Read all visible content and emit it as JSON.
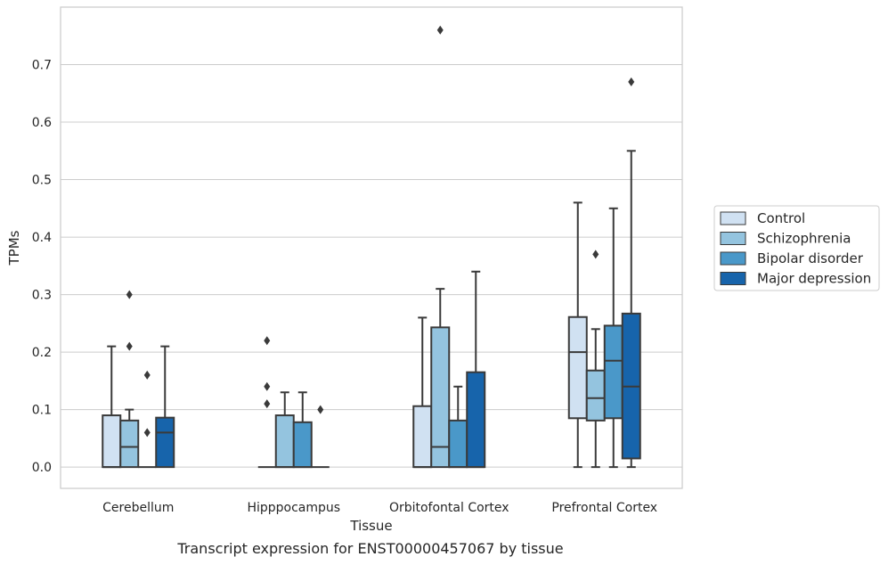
{
  "caption": "Transcript expression for ENST00000457067 by tissue",
  "colors": {
    "Control": "#d0e1f2",
    "Schizophrenia": "#94c4df",
    "Bipolar disorder": "#4a98c9",
    "Major depression": "#1764ab",
    "grid": "#cccccc",
    "stroke": "#3a3a3a"
  },
  "chart_data": {
    "type": "box",
    "xlabel": "Tissue",
    "ylabel": "TPMs",
    "ylim": [
      -0.037,
      0.8
    ],
    "yticks": [
      0.0,
      0.1,
      0.2,
      0.3,
      0.4,
      0.5,
      0.6,
      0.7
    ],
    "grid": true,
    "legend_position": "right",
    "categories": [
      "Cerebellum",
      "Hipppocampus",
      "Orbitofontal Cortex",
      "Prefrontal Cortex"
    ],
    "series": [
      {
        "name": "Control",
        "boxes": [
          {
            "whisker_low": 0.0,
            "q1": 0.0,
            "median": 0.0,
            "q3": 0.09,
            "whisker_high": 0.21,
            "outliers": []
          },
          {
            "whisker_low": 0.0,
            "q1": 0.0,
            "median": 0.0,
            "q3": 0.0,
            "whisker_high": 0.0,
            "outliers": [
              0.22,
              0.14,
              0.11
            ]
          },
          {
            "whisker_low": 0.0,
            "q1": 0.0,
            "median": 0.0,
            "q3": 0.106,
            "whisker_high": 0.26,
            "outliers": []
          },
          {
            "whisker_low": 0.0,
            "q1": 0.085,
            "median": 0.2,
            "q3": 0.261,
            "whisker_high": 0.46,
            "outliers": []
          }
        ]
      },
      {
        "name": "Schizophrenia",
        "boxes": [
          {
            "whisker_low": 0.0,
            "q1": 0.0,
            "median": 0.035,
            "q3": 0.081,
            "whisker_high": 0.1,
            "outliers": [
              0.3,
              0.21
            ]
          },
          {
            "whisker_low": 0.0,
            "q1": 0.0,
            "median": 0.0,
            "q3": 0.09,
            "whisker_high": 0.13,
            "outliers": []
          },
          {
            "whisker_low": 0.0,
            "q1": 0.0,
            "median": 0.035,
            "q3": 0.243,
            "whisker_high": 0.31,
            "outliers": [
              0.76
            ]
          },
          {
            "whisker_low": 0.0,
            "q1": 0.081,
            "median": 0.12,
            "q3": 0.168,
            "whisker_high": 0.24,
            "outliers": [
              0.37
            ]
          }
        ]
      },
      {
        "name": "Bipolar disorder",
        "boxes": [
          {
            "whisker_low": 0.0,
            "q1": 0.0,
            "median": 0.0,
            "q3": 0.0,
            "whisker_high": 0.0,
            "outliers": [
              0.16,
              0.06
            ]
          },
          {
            "whisker_low": 0.0,
            "q1": 0.0,
            "median": 0.0,
            "q3": 0.078,
            "whisker_high": 0.13,
            "outliers": []
          },
          {
            "whisker_low": 0.0,
            "q1": 0.0,
            "median": 0.0,
            "q3": 0.081,
            "whisker_high": 0.14,
            "outliers": []
          },
          {
            "whisker_low": 0.0,
            "q1": 0.085,
            "median": 0.185,
            "q3": 0.246,
            "whisker_high": 0.45,
            "outliers": []
          }
        ]
      },
      {
        "name": "Major depression",
        "boxes": [
          {
            "whisker_low": 0.0,
            "q1": 0.0,
            "median": 0.06,
            "q3": 0.086,
            "whisker_high": 0.21,
            "outliers": []
          },
          {
            "whisker_low": 0.0,
            "q1": 0.0,
            "median": 0.0,
            "q3": 0.0,
            "whisker_high": 0.0,
            "outliers": [
              0.1
            ]
          },
          {
            "whisker_low": 0.0,
            "q1": 0.0,
            "median": 0.0,
            "q3": 0.165,
            "whisker_high": 0.34,
            "outliers": []
          },
          {
            "whisker_low": 0.0,
            "q1": 0.015,
            "median": 0.14,
            "q3": 0.267,
            "whisker_high": 0.55,
            "outliers": [
              0.67
            ]
          }
        ]
      }
    ]
  }
}
